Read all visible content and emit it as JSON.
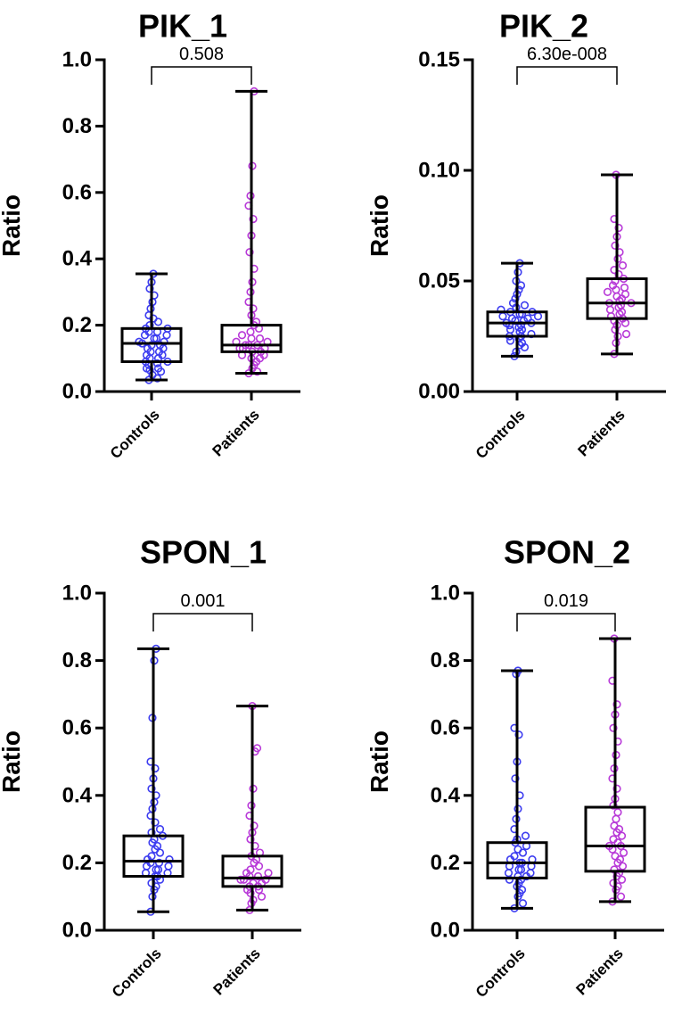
{
  "figure": {
    "background": "#ffffff"
  },
  "colors": {
    "controls": "#3d3df0",
    "patients": "#b83ad8"
  },
  "chart_data": [
    {
      "type": "box",
      "title": "PIK_1",
      "ylabel": "Ratio",
      "ylim": [
        0,
        1.0
      ],
      "yticks": [
        "0.0",
        "0.2",
        "0.4",
        "0.6",
        "0.8",
        "1.0"
      ],
      "ytick_values": [
        0,
        0.2,
        0.4,
        0.6,
        0.8,
        1.0
      ],
      "categories": [
        "Controls",
        "Patients"
      ],
      "p_value": "0.508",
      "groups": [
        {
          "name": "Controls",
          "color": "#3d3df0",
          "min": 0.035,
          "q1": 0.09,
          "median": 0.145,
          "q3": 0.19,
          "max": 0.355,
          "points": [
            0.035,
            0.04,
            0.05,
            0.06,
            0.065,
            0.07,
            0.07,
            0.08,
            0.085,
            0.09,
            0.09,
            0.1,
            0.1,
            0.11,
            0.11,
            0.12,
            0.12,
            0.13,
            0.13,
            0.14,
            0.14,
            0.145,
            0.15,
            0.15,
            0.16,
            0.16,
            0.17,
            0.17,
            0.18,
            0.18,
            0.19,
            0.19,
            0.2,
            0.21,
            0.22,
            0.23,
            0.25,
            0.27,
            0.29,
            0.31,
            0.33,
            0.355
          ]
        },
        {
          "name": "Patients",
          "color": "#b83ad8",
          "min": 0.055,
          "q1": 0.12,
          "median": 0.14,
          "q3": 0.2,
          "max": 0.905,
          "points": [
            0.055,
            0.06,
            0.07,
            0.08,
            0.09,
            0.1,
            0.1,
            0.11,
            0.11,
            0.12,
            0.12,
            0.13,
            0.13,
            0.13,
            0.14,
            0.14,
            0.14,
            0.15,
            0.15,
            0.16,
            0.16,
            0.17,
            0.18,
            0.19,
            0.2,
            0.21,
            0.23,
            0.25,
            0.27,
            0.3,
            0.33,
            0.37,
            0.42,
            0.47,
            0.52,
            0.56,
            0.59,
            0.68,
            0.905
          ]
        }
      ]
    },
    {
      "type": "box",
      "title": "PIK_2",
      "ylabel": "Ratio",
      "ylim": [
        0,
        0.15
      ],
      "yticks": [
        "0.00",
        "0.05",
        "0.10",
        "0.15"
      ],
      "ytick_values": [
        0,
        0.05,
        0.1,
        0.15
      ],
      "categories": [
        "Controls",
        "Patients"
      ],
      "p_value": "6.30e-008",
      "groups": [
        {
          "name": "Controls",
          "color": "#3d3df0",
          "min": 0.016,
          "q1": 0.025,
          "median": 0.031,
          "q3": 0.036,
          "max": 0.058,
          "points": [
            0.016,
            0.018,
            0.02,
            0.021,
            0.022,
            0.023,
            0.024,
            0.025,
            0.025,
            0.026,
            0.027,
            0.028,
            0.028,
            0.029,
            0.03,
            0.03,
            0.031,
            0.031,
            0.032,
            0.032,
            0.033,
            0.033,
            0.034,
            0.034,
            0.035,
            0.035,
            0.036,
            0.036,
            0.037,
            0.038,
            0.039,
            0.04,
            0.042,
            0.044,
            0.046,
            0.048,
            0.05,
            0.054,
            0.058
          ]
        },
        {
          "name": "Patients",
          "color": "#b83ad8",
          "min": 0.017,
          "q1": 0.033,
          "median": 0.04,
          "q3": 0.051,
          "max": 0.098,
          "points": [
            0.017,
            0.022,
            0.025,
            0.026,
            0.028,
            0.03,
            0.031,
            0.032,
            0.033,
            0.034,
            0.035,
            0.036,
            0.037,
            0.038,
            0.039,
            0.04,
            0.04,
            0.041,
            0.042,
            0.043,
            0.044,
            0.045,
            0.046,
            0.047,
            0.048,
            0.05,
            0.051,
            0.053,
            0.055,
            0.057,
            0.06,
            0.063,
            0.066,
            0.07,
            0.074,
            0.078,
            0.098
          ]
        }
      ]
    },
    {
      "type": "box",
      "title": "SPON_1",
      "ylabel": "Ratio",
      "ylim": [
        0,
        1.0
      ],
      "yticks": [
        "0.0",
        "0.2",
        "0.4",
        "0.6",
        "0.8",
        "1.0"
      ],
      "ytick_values": [
        0,
        0.2,
        0.4,
        0.6,
        0.8,
        1.0
      ],
      "categories": [
        "Controls",
        "Patients"
      ],
      "p_value": "0.001",
      "groups": [
        {
          "name": "Controls",
          "color": "#3d3df0",
          "min": 0.055,
          "q1": 0.16,
          "median": 0.205,
          "q3": 0.28,
          "max": 0.835,
          "points": [
            0.055,
            0.1,
            0.12,
            0.13,
            0.14,
            0.15,
            0.16,
            0.16,
            0.17,
            0.17,
            0.18,
            0.18,
            0.19,
            0.19,
            0.2,
            0.2,
            0.21,
            0.21,
            0.22,
            0.23,
            0.24,
            0.25,
            0.26,
            0.27,
            0.28,
            0.29,
            0.3,
            0.32,
            0.34,
            0.36,
            0.38,
            0.4,
            0.42,
            0.45,
            0.48,
            0.5,
            0.63,
            0.8,
            0.835
          ]
        },
        {
          "name": "Patients",
          "color": "#b83ad8",
          "min": 0.06,
          "q1": 0.13,
          "median": 0.155,
          "q3": 0.22,
          "max": 0.665,
          "points": [
            0.06,
            0.08,
            0.09,
            0.1,
            0.11,
            0.12,
            0.12,
            0.13,
            0.13,
            0.14,
            0.14,
            0.15,
            0.15,
            0.15,
            0.16,
            0.16,
            0.17,
            0.17,
            0.18,
            0.19,
            0.2,
            0.21,
            0.22,
            0.23,
            0.25,
            0.27,
            0.29,
            0.31,
            0.34,
            0.37,
            0.42,
            0.53,
            0.54,
            0.665
          ]
        }
      ]
    },
    {
      "type": "box",
      "title": "SPON_2",
      "ylabel": "Ratio",
      "ylim": [
        0,
        1.0
      ],
      "yticks": [
        "0.0",
        "0.2",
        "0.4",
        "0.6",
        "0.8",
        "1.0"
      ],
      "ytick_values": [
        0,
        0.2,
        0.4,
        0.6,
        0.8,
        1.0
      ],
      "categories": [
        "Controls",
        "Patients"
      ],
      "p_value": "0.019",
      "groups": [
        {
          "name": "Controls",
          "color": "#3d3df0",
          "min": 0.065,
          "q1": 0.155,
          "median": 0.2,
          "q3": 0.26,
          "max": 0.77,
          "points": [
            0.065,
            0.08,
            0.1,
            0.11,
            0.12,
            0.13,
            0.14,
            0.15,
            0.15,
            0.16,
            0.16,
            0.17,
            0.17,
            0.18,
            0.18,
            0.19,
            0.19,
            0.2,
            0.2,
            0.21,
            0.21,
            0.22,
            0.23,
            0.24,
            0.25,
            0.26,
            0.27,
            0.28,
            0.3,
            0.33,
            0.36,
            0.4,
            0.45,
            0.5,
            0.58,
            0.6,
            0.76,
            0.77
          ]
        },
        {
          "name": "Patients",
          "color": "#b83ad8",
          "min": 0.085,
          "q1": 0.175,
          "median": 0.25,
          "q3": 0.365,
          "max": 0.865,
          "points": [
            0.085,
            0.1,
            0.12,
            0.13,
            0.14,
            0.15,
            0.16,
            0.17,
            0.18,
            0.19,
            0.2,
            0.21,
            0.22,
            0.23,
            0.24,
            0.25,
            0.25,
            0.26,
            0.27,
            0.28,
            0.29,
            0.3,
            0.31,
            0.33,
            0.35,
            0.37,
            0.39,
            0.42,
            0.45,
            0.48,
            0.52,
            0.56,
            0.6,
            0.64,
            0.67,
            0.74,
            0.865
          ]
        }
      ]
    }
  ]
}
